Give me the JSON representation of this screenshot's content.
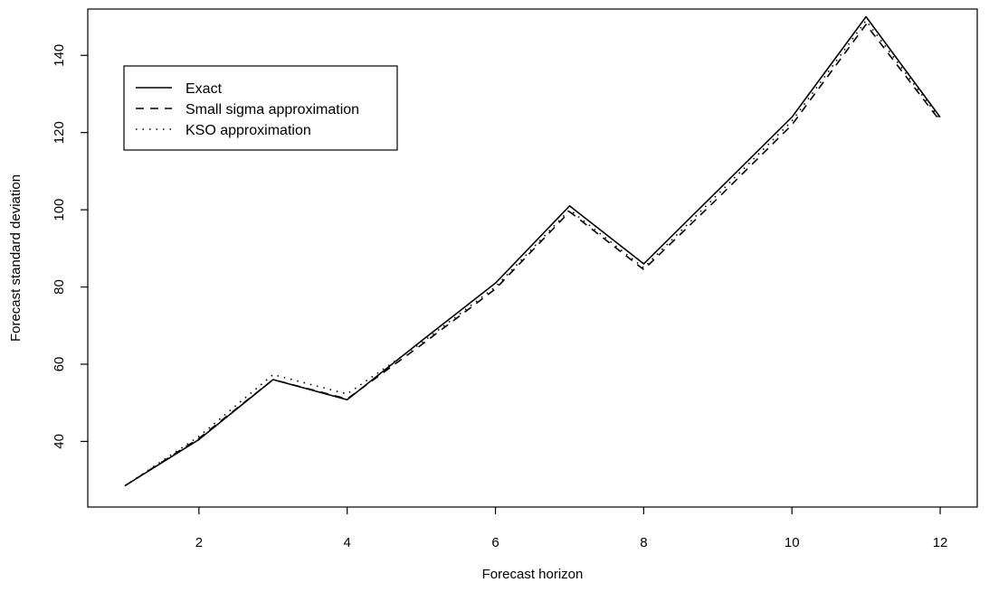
{
  "chart_data": {
    "type": "line",
    "title": "",
    "xlabel": "Forecast horizon",
    "ylabel": "Forecast standard deviation",
    "xlim": [
      0.5,
      12.5
    ],
    "ylim": [
      23,
      152
    ],
    "xticks": [
      2,
      4,
      6,
      8,
      10,
      12
    ],
    "yticks": [
      40,
      60,
      80,
      100,
      120,
      140
    ],
    "grid": false,
    "legend_position": "top-left",
    "x": [
      1,
      2,
      3,
      4,
      5,
      6,
      7,
      8,
      9,
      10,
      11,
      12
    ],
    "series": [
      {
        "name": "Exact",
        "style": "solid",
        "values": [
          28.5,
          40.5,
          56,
          50.8,
          66,
          81,
          101,
          86,
          105,
          124,
          150,
          124
        ]
      },
      {
        "name": "Small sigma approximation",
        "style": "dashed",
        "values": [
          28.5,
          40.8,
          56,
          51,
          65,
          79.5,
          99.5,
          84.5,
          103,
          122,
          148,
          123
        ]
      },
      {
        "name": "KSO approximation",
        "style": "dotted",
        "values": [
          28.5,
          41.3,
          57.3,
          52.3,
          65.5,
          80,
          100,
          85,
          104,
          123,
          149,
          123.5
        ]
      }
    ]
  }
}
